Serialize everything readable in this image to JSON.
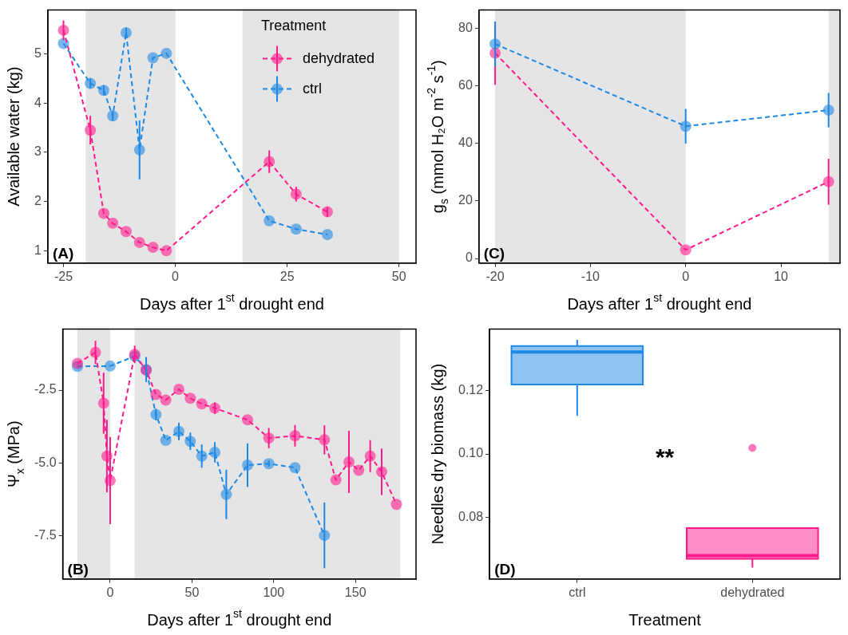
{
  "chart_data": [
    {
      "type": "line",
      "xlabel": "Days after 1$^{st}$ drought end",
      "ylabel": "Available water (kg)",
      "xlim": [
        -28.5,
        53.8
      ],
      "ylim": [
        0.75,
        5.89
      ],
      "xticks": [
        -25,
        0,
        25,
        50
      ],
      "yticks": [
        1,
        2,
        3,
        4,
        5
      ],
      "marker": "circle",
      "line_style": "dashed",
      "legend": "top right",
      "legend_title": "Treatment",
      "annotations": [
        "(A)"
      ],
      "bands": [
        {
          "axis": "x",
          "from": -20,
          "to": 0,
          "color": "#e5e5e5"
        },
        {
          "axis": "x",
          "from": 15,
          "to": 50,
          "color": "#e5e5e5"
        }
      ],
      "series": [
        {
          "name": "dehydrated",
          "color": "#ff1a8c",
          "x": [
            -25,
            -19,
            -16,
            -14,
            -11,
            -8,
            -5,
            -2,
            21,
            27,
            34
          ],
          "values": [
            5.48,
            3.45,
            1.76,
            1.56,
            1.39,
            1.17,
            1.07,
            1.0,
            2.81,
            2.15,
            1.79
          ],
          "errors": [
            0.2,
            0.29,
            null,
            null,
            null,
            null,
            null,
            null,
            0.23,
            0.15,
            0.1
          ]
        },
        {
          "name": "ctrl",
          "color": "#1e88e5",
          "x": [
            -25,
            -19,
            -16,
            -14,
            -11,
            -8,
            -5,
            -2,
            21,
            27,
            34
          ],
          "values": [
            5.21,
            4.4,
            4.26,
            3.74,
            5.43,
            3.05,
            4.92,
            5.01,
            1.61,
            1.44,
            1.33
          ],
          "errors": [
            null,
            0.1,
            0.1,
            0.1,
            0.1,
            0.6,
            null,
            null,
            null,
            null,
            null
          ]
        }
      ]
    },
    {
      "type": "line",
      "xlabel": "Days after 1$^{st}$ drought end",
      "ylabel": "g$_{s}$ (mmol H₂O m$^{-2}$ s$^{-1}$)",
      "xlim": [
        -21.7,
        16.2
      ],
      "ylim": [
        -1.6,
        86.4
      ],
      "xticks": [
        -20,
        -10,
        0,
        10
      ],
      "yticks": [
        0,
        20,
        40,
        60,
        80
      ],
      "marker": "circle",
      "line_style": "dashed",
      "annotations": [
        "(C)"
      ],
      "bands": [
        {
          "axis": "x",
          "from": -20,
          "to": 0,
          "color": "#e5e5e5"
        },
        {
          "axis": "x",
          "from": 15,
          "to": 16.2,
          "color": "#e5e5e5"
        }
      ],
      "series": [
        {
          "color": "#ff1a8c",
          "x": [
            -20,
            0,
            15
          ],
          "values": [
            71.4,
            3.0,
            26.7
          ],
          "errors": [
            11,
            null,
            8
          ]
        },
        {
          "color": "#1e88e5",
          "x": [
            -20,
            0,
            15
          ],
          "values": [
            74.6,
            46.0,
            51.6
          ],
          "errors": [
            7.8,
            6,
            6
          ]
        }
      ]
    },
    {
      "type": "line",
      "xlabel": "Days after 1$^{st}$ drought end",
      "ylabel": "Ψ$_{x}$ (MPa)",
      "xlim": [
        -29,
        187
      ],
      "ylim": [
        -9.0,
        -0.4
      ],
      "xticks": [
        0,
        50,
        100,
        150
      ],
      "yticks": [
        {
          "value": -2.5,
          "label": "-2.5"
        },
        {
          "value": -5,
          "label": "-5.0"
        },
        {
          "value": -7.5,
          "label": "-7.5"
        }
      ],
      "marker": "circle",
      "line_style": "dashed",
      "annotations": [
        "(B)"
      ],
      "bands": [
        {
          "axis": "x",
          "from": -20,
          "to": 0,
          "color": "#e5e5e5"
        },
        {
          "axis": "x",
          "from": 15,
          "to": 177.5,
          "color": "#e5e5e5"
        }
      ],
      "series": [
        {
          "color": "#ff1a8c",
          "x": [
            -20,
            -9,
            -4,
            -2,
            0,
            15,
            22,
            28,
            34,
            42,
            49,
            56,
            64,
            84,
            97,
            113,
            131,
            138,
            146,
            152,
            159,
            166,
            175
          ],
          "values": [
            -1.58,
            -1.2,
            -2.95,
            -4.77,
            -5.61,
            -1.27,
            -1.81,
            -2.65,
            -2.84,
            -2.47,
            -2.78,
            -2.97,
            -3.12,
            -3.52,
            -4.15,
            -4.07,
            -4.21,
            -5.59,
            -4.97,
            -5.26,
            -4.77,
            -5.31,
            -6.43
          ],
          "errors": [
            null,
            0.4,
            1.05,
            1.25,
            1.5,
            0.3,
            null,
            null,
            null,
            null,
            null,
            null,
            0.2,
            null,
            0.35,
            0.37,
            0.5,
            null,
            1.07,
            null,
            0.55,
            0.8,
            null
          ]
        },
        {
          "color": "#1e88e5",
          "x": [
            -20,
            0,
            15,
            22,
            28,
            34,
            42,
            49,
            56,
            64,
            71,
            84,
            97,
            113,
            131
          ],
          "values": [
            -1.68,
            -1.67,
            -1.33,
            -1.79,
            -3.34,
            -4.23,
            -3.92,
            -4.26,
            -4.77,
            -4.64,
            -6.09,
            -5.08,
            -5.03,
            -5.17,
            -7.5
          ],
          "errors": [
            null,
            null,
            null,
            0.43,
            0.2,
            null,
            0.3,
            0.3,
            0.4,
            0.35,
            0.85,
            0.75,
            0.1,
            null,
            1.13
          ]
        }
      ]
    },
    {
      "type": "box",
      "xlabel": "Treatment",
      "ylabel": "Needles dry biomass (kg)",
      "categories": [
        "ctrl",
        "dehydrated"
      ],
      "ylim": [
        0.0605,
        0.1394
      ],
      "yticks": [
        {
          "value": 0.08,
          "label": "0.08"
        },
        {
          "value": 0.1,
          "label": "0.10"
        },
        {
          "value": 0.12,
          "label": "0.12"
        }
      ],
      "colors": [
        "#1e88e5",
        "#ff1a8c"
      ],
      "annotations": [
        "(D)",
        "**"
      ],
      "boxes": [
        {
          "low": 0.112,
          "q1": 0.1219,
          "median": 0.1322,
          "q3": 0.1341,
          "high": 0.136
        },
        {
          "low": 0.0641,
          "q1": 0.0669,
          "median": 0.0679,
          "q3": 0.0766,
          "high": 0.0766,
          "outliers": [
            0.1019
          ]
        }
      ]
    }
  ]
}
